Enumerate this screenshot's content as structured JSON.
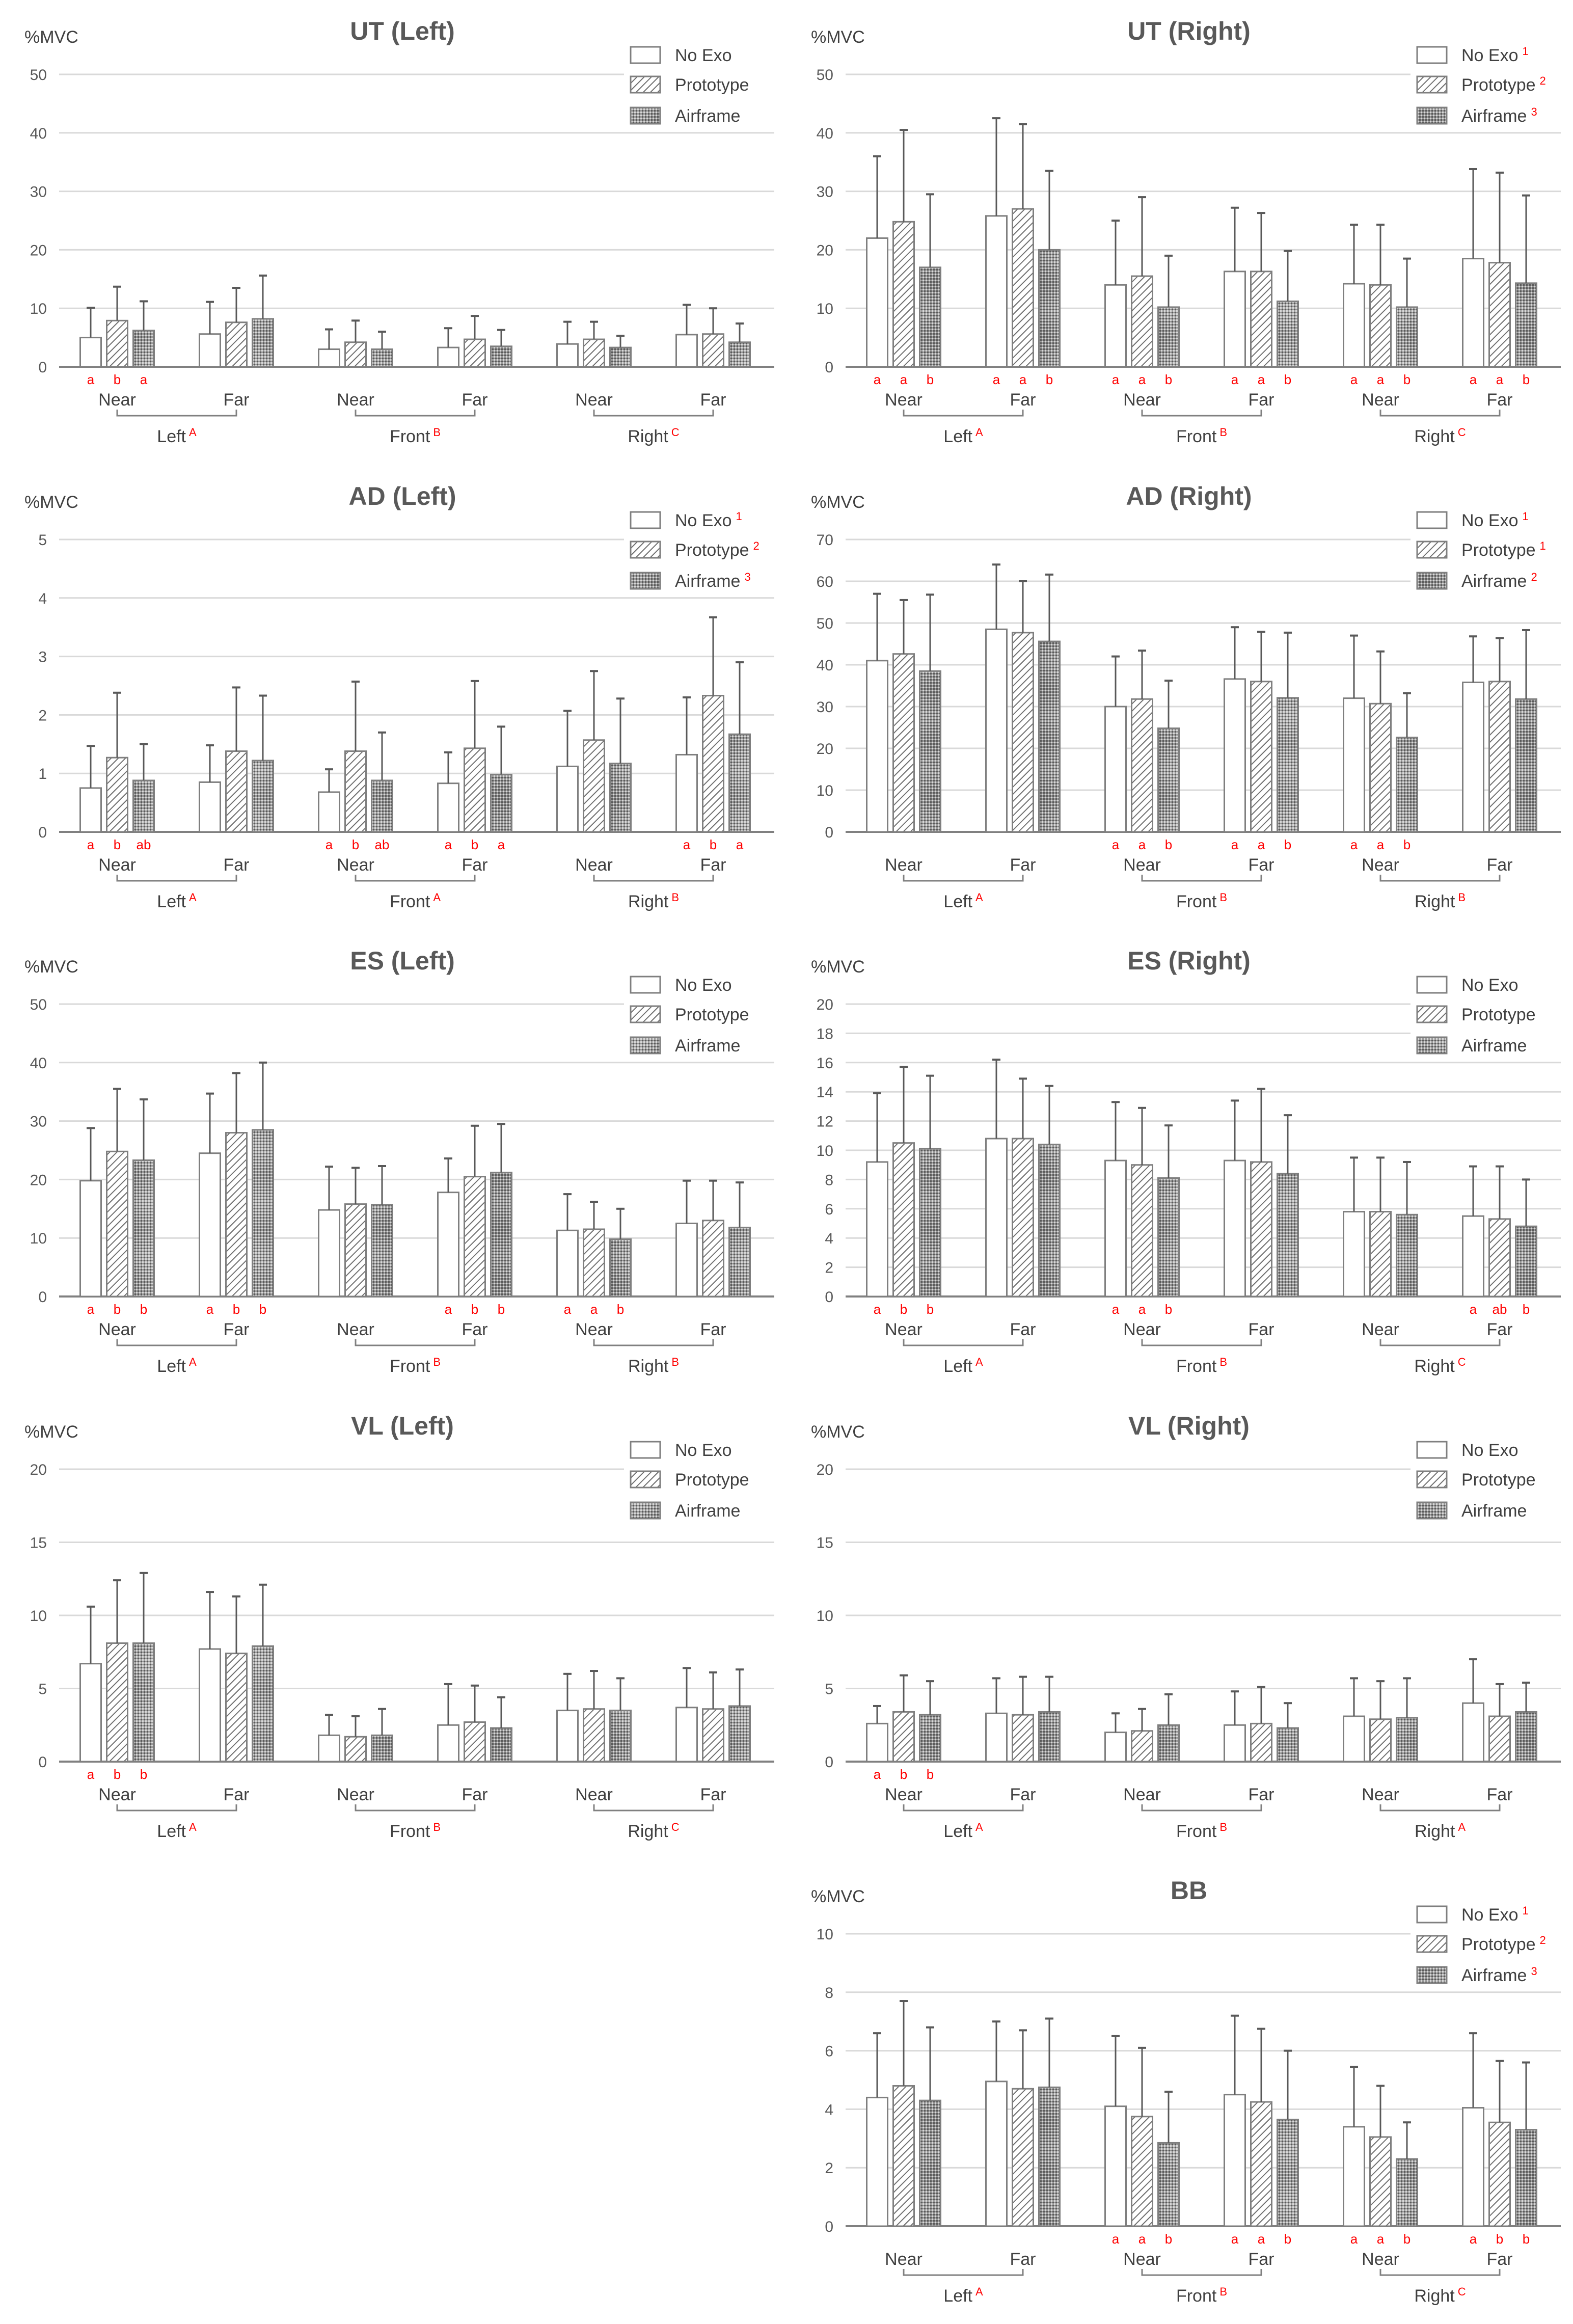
{
  "legend_labels": [
    "No Exo",
    "Prototype",
    "Airframe"
  ],
  "categories": [
    "Near",
    "Far",
    "Near",
    "Far",
    "Near",
    "Far"
  ],
  "group_labels": [
    "Left",
    "Front",
    "Right"
  ],
  "ylabel": "%MVC",
  "colors": {
    "bar_stroke": "#7f7f7f",
    "text": "#404040",
    "grid": "#d9d9d9",
    "letters": "#ff0000",
    "title": "#595959"
  },
  "chart_data": [
    {
      "type": "bar",
      "title": "UT (Left)",
      "ylim": [
        0,
        50
      ],
      "ystep": 10,
      "legend_sup": [
        "",
        "",
        ""
      ],
      "group_sup": [
        "A",
        "B",
        "C"
      ],
      "means": [
        [
          5.0,
          7.9,
          6.2
        ],
        [
          5.6,
          7.6,
          8.2
        ],
        [
          3.0,
          4.2,
          3.0
        ],
        [
          3.3,
          4.7,
          3.5
        ],
        [
          3.9,
          4.7,
          3.3
        ],
        [
          5.5,
          5.6,
          4.2
        ]
      ],
      "mean_plus_sd": [
        [
          10.1,
          13.7,
          11.2
        ],
        [
          11.1,
          13.5,
          15.6
        ],
        [
          6.4,
          7.9,
          6.0
        ],
        [
          6.6,
          8.7,
          6.3
        ],
        [
          7.7,
          7.7,
          5.3
        ],
        [
          10.6,
          10.0,
          7.4
        ]
      ],
      "letters": [
        [
          "a",
          "b",
          "a"
        ],
        [
          "",
          "",
          ""
        ],
        [
          "",
          "",
          ""
        ],
        [
          "",
          "",
          ""
        ],
        [
          "",
          "",
          ""
        ],
        [
          "",
          "",
          ""
        ]
      ]
    },
    {
      "type": "bar",
      "title": "UT (Right)",
      "ylim": [
        0,
        50
      ],
      "ystep": 10,
      "legend_sup": [
        "1",
        "2",
        "3"
      ],
      "group_sup": [
        "A",
        "B",
        "C"
      ],
      "means": [
        [
          22.0,
          24.8,
          17.0
        ],
        [
          25.8,
          27.0,
          20.0
        ],
        [
          14.0,
          15.5,
          10.2
        ],
        [
          16.3,
          16.3,
          11.2
        ],
        [
          14.2,
          14.0,
          10.2
        ],
        [
          18.5,
          17.8,
          14.3
        ]
      ],
      "mean_plus_sd": [
        [
          36.0,
          40.5,
          29.5
        ],
        [
          42.5,
          41.5,
          33.5
        ],
        [
          25.0,
          29.0,
          19.0
        ],
        [
          27.2,
          26.3,
          19.8
        ],
        [
          24.3,
          24.3,
          18.5
        ],
        [
          33.8,
          33.2,
          29.3
        ]
      ],
      "letters": [
        [
          "a",
          "a",
          "b"
        ],
        [
          "a",
          "a",
          "b"
        ],
        [
          "a",
          "a",
          "b"
        ],
        [
          "a",
          "a",
          "b"
        ],
        [
          "a",
          "a",
          "b"
        ],
        [
          "a",
          "a",
          "b"
        ]
      ]
    },
    {
      "type": "bar",
      "title": "AD (Left)",
      "ylim": [
        0,
        5
      ],
      "ystep": 1,
      "legend_sup": [
        "1",
        "2",
        "3"
      ],
      "group_sup": [
        "A",
        "A",
        "B"
      ],
      "means": [
        [
          0.75,
          1.27,
          0.88
        ],
        [
          0.85,
          1.38,
          1.22
        ],
        [
          0.68,
          1.38,
          0.88
        ],
        [
          0.83,
          1.43,
          0.98
        ],
        [
          1.12,
          1.57,
          1.17
        ],
        [
          1.32,
          2.33,
          1.67
        ]
      ],
      "mean_plus_sd": [
        [
          1.47,
          2.38,
          1.5
        ],
        [
          1.48,
          2.47,
          2.33
        ],
        [
          1.07,
          2.57,
          1.7
        ],
        [
          1.36,
          2.58,
          1.8
        ],
        [
          2.07,
          2.75,
          2.28
        ],
        [
          2.3,
          3.67,
          2.9
        ]
      ],
      "letters": [
        [
          "a",
          "b",
          "ab"
        ],
        [
          "",
          "",
          ""
        ],
        [
          "a",
          "b",
          "ab"
        ],
        [
          "a",
          "b",
          "a"
        ],
        [
          "",
          "",
          ""
        ],
        [
          "a",
          "b",
          "a"
        ]
      ]
    },
    {
      "type": "bar",
      "title": "AD (Right)",
      "ylim": [
        0,
        70
      ],
      "ystep": 10,
      "legend_sup": [
        "1",
        "1",
        "2"
      ],
      "group_sup": [
        "A",
        "B",
        "B"
      ],
      "means": [
        [
          41.0,
          42.6,
          38.5
        ],
        [
          48.5,
          47.7,
          45.6
        ],
        [
          30.0,
          31.8,
          24.8
        ],
        [
          36.6,
          36.0,
          32.1
        ],
        [
          32.0,
          30.7,
          22.6
        ],
        [
          35.8,
          36.0,
          31.8
        ]
      ],
      "mean_plus_sd": [
        [
          57.0,
          55.5,
          56.8
        ],
        [
          64.0,
          60.0,
          61.6
        ],
        [
          42.0,
          43.4,
          36.2
        ],
        [
          49.0,
          47.9,
          47.7
        ],
        [
          47.0,
          43.2,
          33.2
        ],
        [
          46.8,
          46.4,
          48.3
        ]
      ],
      "letters": [
        [
          "",
          "",
          ""
        ],
        [
          "",
          "",
          ""
        ],
        [
          "a",
          "a",
          "b"
        ],
        [
          "a",
          "a",
          "b"
        ],
        [
          "a",
          "a",
          "b"
        ],
        [
          "",
          "",
          ""
        ]
      ]
    },
    {
      "type": "bar",
      "title": "ES (Left)",
      "ylim": [
        0,
        50
      ],
      "ystep": 10,
      "legend_sup": [
        "",
        "",
        ""
      ],
      "group_sup": [
        "A",
        "B",
        "B"
      ],
      "means": [
        [
          19.8,
          24.8,
          23.3
        ],
        [
          24.5,
          28.0,
          28.5
        ],
        [
          14.8,
          15.8,
          15.7
        ],
        [
          17.8,
          20.5,
          21.2
        ],
        [
          11.3,
          11.5,
          9.8
        ],
        [
          12.5,
          13.0,
          11.8
        ]
      ],
      "mean_plus_sd": [
        [
          28.8,
          35.5,
          33.7
        ],
        [
          34.7,
          38.2,
          40.0
        ],
        [
          22.2,
          22.0,
          22.3
        ],
        [
          23.6,
          29.2,
          29.5
        ],
        [
          17.5,
          16.2,
          15.0
        ],
        [
          19.8,
          19.8,
          19.5
        ]
      ],
      "letters": [
        [
          "a",
          "b",
          "b"
        ],
        [
          "a",
          "b",
          "b"
        ],
        [
          "",
          "",
          ""
        ],
        [
          "a",
          "b",
          "b"
        ],
        [
          "a",
          "a",
          "b"
        ],
        [
          "",
          "",
          ""
        ]
      ]
    },
    {
      "type": "bar",
      "title": "ES (Right)",
      "ylim": [
        0,
        20
      ],
      "ystep": 2,
      "legend_sup": [
        "",
        "",
        ""
      ],
      "group_sup": [
        "A",
        "B",
        "C"
      ],
      "means": [
        [
          9.2,
          10.5,
          10.1
        ],
        [
          10.8,
          10.8,
          10.4
        ],
        [
          9.3,
          9.0,
          8.1
        ],
        [
          9.3,
          9.2,
          8.4
        ],
        [
          5.8,
          5.8,
          5.6
        ],
        [
          5.5,
          5.3,
          4.8
        ]
      ],
      "mean_plus_sd": [
        [
          13.9,
          15.7,
          15.1
        ],
        [
          16.2,
          14.9,
          14.4
        ],
        [
          13.3,
          12.9,
          11.7
        ],
        [
          13.4,
          14.2,
          12.4
        ],
        [
          9.5,
          9.5,
          9.2
        ],
        [
          8.9,
          8.9,
          8.0
        ]
      ],
      "letters": [
        [
          "a",
          "b",
          "b"
        ],
        [
          "",
          "",
          ""
        ],
        [
          "a",
          "a",
          "b"
        ],
        [
          "",
          "",
          ""
        ],
        [
          "",
          "",
          ""
        ],
        [
          "a",
          "ab",
          "b"
        ]
      ]
    },
    {
      "type": "bar",
      "title": "VL (Left)",
      "ylim": [
        0,
        20
      ],
      "ystep": 5,
      "legend_sup": [
        "",
        "",
        ""
      ],
      "group_sup": [
        "A",
        "B",
        "C"
      ],
      "means": [
        [
          6.7,
          8.1,
          8.1
        ],
        [
          7.7,
          7.4,
          7.9
        ],
        [
          1.8,
          1.7,
          1.8
        ],
        [
          2.5,
          2.7,
          2.3
        ],
        [
          3.5,
          3.6,
          3.5
        ],
        [
          3.7,
          3.6,
          3.8
        ]
      ],
      "mean_plus_sd": [
        [
          10.6,
          12.4,
          12.9
        ],
        [
          11.6,
          11.3,
          12.1
        ],
        [
          3.2,
          3.1,
          3.6
        ],
        [
          5.3,
          5.2,
          4.4
        ],
        [
          6.0,
          6.2,
          5.7
        ],
        [
          6.4,
          6.1,
          6.3
        ]
      ],
      "letters": [
        [
          "a",
          "b",
          "b"
        ],
        [
          "",
          "",
          ""
        ],
        [
          "",
          "",
          ""
        ],
        [
          "",
          "",
          ""
        ],
        [
          "",
          "",
          ""
        ],
        [
          "",
          "",
          ""
        ]
      ]
    },
    {
      "type": "bar",
      "title": "VL (Right)",
      "ylim": [
        0,
        20
      ],
      "ystep": 5,
      "legend_sup": [
        "",
        "",
        ""
      ],
      "group_sup": [
        "A",
        "B",
        "A"
      ],
      "means": [
        [
          2.6,
          3.4,
          3.2
        ],
        [
          3.3,
          3.2,
          3.4
        ],
        [
          2.0,
          2.1,
          2.5
        ],
        [
          2.5,
          2.6,
          2.3
        ],
        [
          3.1,
          2.9,
          3.0
        ],
        [
          4.0,
          3.1,
          3.4
        ]
      ],
      "mean_plus_sd": [
        [
          3.8,
          5.9,
          5.5
        ],
        [
          5.7,
          5.8,
          5.8
        ],
        [
          3.3,
          3.6,
          4.6
        ],
        [
          4.8,
          5.1,
          4.0
        ],
        [
          5.7,
          5.5,
          5.7
        ],
        [
          7.0,
          5.3,
          5.4
        ]
      ],
      "letters": [
        [
          "a",
          "b",
          "b"
        ],
        [
          "",
          "",
          ""
        ],
        [
          "",
          "",
          ""
        ],
        [
          "",
          "",
          ""
        ],
        [
          "",
          "",
          ""
        ],
        [
          "",
          "",
          ""
        ]
      ]
    },
    {
      "type": "bar",
      "title": "BB",
      "ylim": [
        0,
        10
      ],
      "ystep": 2,
      "legend_sup": [
        "1",
        "2",
        "3"
      ],
      "group_sup": [
        "A",
        "B",
        "C"
      ],
      "means": [
        [
          4.4,
          4.8,
          4.3
        ],
        [
          4.95,
          4.7,
          4.75
        ],
        [
          4.1,
          3.75,
          2.85
        ],
        [
          4.5,
          4.25,
          3.65
        ],
        [
          3.4,
          3.05,
          2.3
        ],
        [
          4.05,
          3.55,
          3.3
        ]
      ],
      "mean_plus_sd": [
        [
          6.6,
          7.7,
          6.8
        ],
        [
          7.0,
          6.7,
          7.1
        ],
        [
          6.5,
          6.1,
          4.6
        ],
        [
          7.2,
          6.75,
          6.0
        ],
        [
          5.45,
          4.8,
          3.55
        ],
        [
          6.6,
          5.65,
          5.6
        ]
      ],
      "letters": [
        [
          "",
          "",
          ""
        ],
        [
          "",
          "",
          ""
        ],
        [
          "a",
          "a",
          "b"
        ],
        [
          "a",
          "a",
          "b"
        ],
        [
          "a",
          "a",
          "b"
        ],
        [
          "a",
          "b",
          "b"
        ]
      ]
    }
  ]
}
